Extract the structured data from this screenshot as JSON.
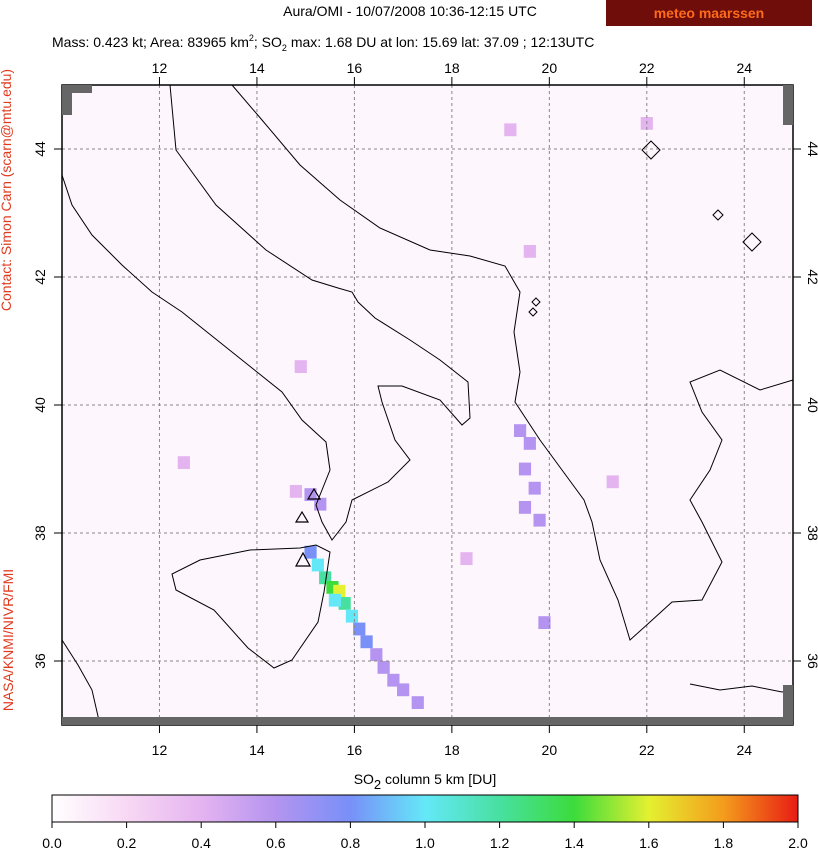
{
  "map": {
    "title": "Aura/OMI - 10/07/2008 10:36-12:15 UTC",
    "logo": "meteo maarssen",
    "subtitle_parts": [
      "Mass: 0.423 kt; Area: 83965 km",
      "2",
      "; SO",
      "2",
      " max: 1.68 DU at lon: 15.69 lat: 37.09 ; 12:13UTC"
    ],
    "contact": "Contact: Simon Carn (scarn@mtu.edu)",
    "credit": "NASA/KNMI/NIVR/FMI",
    "lonlim": [
      10,
      25
    ],
    "latlim": [
      35,
      45
    ],
    "lon_ticks": [
      12,
      14,
      16,
      18,
      20,
      22,
      24
    ],
    "lat_ticks": [
      36,
      38,
      40,
      42,
      44
    ],
    "grid": true,
    "colorbar_label_parts": [
      "SO",
      "2",
      " column 5 km [DU]"
    ],
    "colorbar_lim": [
      0,
      2
    ],
    "colorbar_ticks": [
      {
        "value": 0,
        "label": "0.0"
      },
      {
        "value": 0.2,
        "label": "0.2"
      },
      {
        "value": 0.4,
        "label": "0.4"
      },
      {
        "value": 0.6,
        "label": "0.6"
      },
      {
        "value": 0.8,
        "label": "0.8"
      },
      {
        "value": 1,
        "label": "1.0"
      },
      {
        "value": 1.2,
        "label": "1.2"
      },
      {
        "value": 1.4,
        "label": "1.4"
      },
      {
        "value": 1.6,
        "label": "1.6"
      },
      {
        "value": 1.8,
        "label": "1.8"
      },
      {
        "value": 2,
        "label": "2.0"
      }
    ],
    "colormap": [
      "#ffffff",
      "#f8d8f4",
      "#e4b4f0",
      "#b494f0",
      "#7890f8",
      "#64e8f8",
      "#48e0a0",
      "#3cdc3c",
      "#e4f030",
      "#f49c1c",
      "#e81c14"
    ],
    "cells": [
      {
        "lon": 15.1,
        "lat": 37.7,
        "value": 0.85
      },
      {
        "lon": 15.25,
        "lat": 37.5,
        "value": 1.0
      },
      {
        "lon": 15.4,
        "lat": 37.3,
        "value": 1.1
      },
      {
        "lon": 15.55,
        "lat": 37.15,
        "value": 1.3
      },
      {
        "lon": 15.69,
        "lat": 37.09,
        "value": 1.68
      },
      {
        "lon": 15.8,
        "lat": 36.9,
        "value": 1.15
      },
      {
        "lon": 15.6,
        "lat": 36.95,
        "value": 1.05
      },
      {
        "lon": 15.95,
        "lat": 36.7,
        "value": 0.95
      },
      {
        "lon": 16.1,
        "lat": 36.5,
        "value": 0.8
      },
      {
        "lon": 16.25,
        "lat": 36.3,
        "value": 0.7
      },
      {
        "lon": 16.45,
        "lat": 36.1,
        "value": 0.65
      },
      {
        "lon": 16.6,
        "lat": 35.9,
        "value": 0.55
      },
      {
        "lon": 16.8,
        "lat": 35.7,
        "value": 0.6
      },
      {
        "lon": 17.0,
        "lat": 35.55,
        "value": 0.5
      },
      {
        "lon": 17.3,
        "lat": 35.35,
        "value": 0.55
      },
      {
        "lon": 15.1,
        "lat": 38.6,
        "value": 0.6
      },
      {
        "lon": 15.3,
        "lat": 38.45,
        "value": 0.5
      },
      {
        "lon": 14.8,
        "lat": 38.65,
        "value": 0.45
      },
      {
        "lon": 19.4,
        "lat": 39.6,
        "value": 0.5
      },
      {
        "lon": 19.6,
        "lat": 39.4,
        "value": 0.55
      },
      {
        "lon": 19.5,
        "lat": 39.0,
        "value": 0.6
      },
      {
        "lon": 19.7,
        "lat": 38.7,
        "value": 0.6
      },
      {
        "lon": 19.5,
        "lat": 38.4,
        "value": 0.55
      },
      {
        "lon": 19.8,
        "lat": 38.2,
        "value": 0.5
      },
      {
        "lon": 19.9,
        "lat": 36.6,
        "value": 0.5
      },
      {
        "lon": 19.6,
        "lat": 42.4,
        "value": 0.4
      },
      {
        "lon": 19.2,
        "lat": 44.3,
        "value": 0.4
      },
      {
        "lon": 22.0,
        "lat": 44.4,
        "value": 0.35
      },
      {
        "lon": 14.9,
        "lat": 40.6,
        "value": 0.45
      },
      {
        "lon": 18.3,
        "lat": 37.6,
        "value": 0.3
      },
      {
        "lon": 12.5,
        "lat": 39.1,
        "value": 0.3
      },
      {
        "lon": 21.3,
        "lat": 38.8,
        "value": 0.35
      }
    ]
  }
}
